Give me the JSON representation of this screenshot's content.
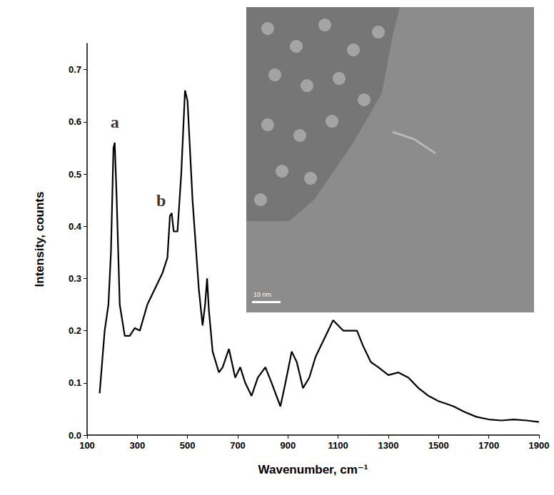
{
  "chart_data": {
    "type": "line",
    "x_label": "Wavenumber, cm⁻¹",
    "y_label": "Intensity, counts",
    "color": "#000000",
    "line_style": "solid",
    "grid": false,
    "x": [
      150,
      170,
      185,
      195,
      205,
      210,
      218,
      230,
      250,
      270,
      290,
      310,
      340,
      370,
      400,
      420,
      430,
      437,
      445,
      460,
      475,
      490,
      500,
      520,
      545,
      560,
      570,
      578,
      585,
      600,
      625,
      640,
      665,
      690,
      710,
      730,
      755,
      780,
      810,
      835,
      870,
      890,
      915,
      935,
      960,
      985,
      1010,
      1050,
      1080,
      1100,
      1120,
      1150,
      1175,
      1200,
      1230,
      1260,
      1300,
      1340,
      1380,
      1420,
      1460,
      1500,
      1530,
      1560,
      1600,
      1650,
      1700,
      1750,
      1800,
      1850,
      1900
    ],
    "values": [
      0.08,
      0.2,
      0.25,
      0.35,
      0.55,
      0.56,
      0.45,
      0.25,
      0.19,
      0.19,
      0.205,
      0.2,
      0.25,
      0.28,
      0.31,
      0.34,
      0.42,
      0.425,
      0.39,
      0.39,
      0.5,
      0.66,
      0.64,
      0.45,
      0.28,
      0.21,
      0.25,
      0.3,
      0.24,
      0.16,
      0.12,
      0.13,
      0.165,
      0.11,
      0.13,
      0.1,
      0.075,
      0.11,
      0.13,
      0.1,
      0.055,
      0.1,
      0.16,
      0.14,
      0.09,
      0.11,
      0.15,
      0.19,
      0.22,
      0.21,
      0.2,
      0.2,
      0.2,
      0.17,
      0.14,
      0.13,
      0.115,
      0.12,
      0.11,
      0.09,
      0.075,
      0.065,
      0.06,
      0.055,
      0.045,
      0.035,
      0.03,
      0.028,
      0.03,
      0.028,
      0.025
    ],
    "xlim": [
      100,
      1900
    ],
    "xticks": [
      100,
      300,
      500,
      700,
      900,
      1100,
      1300,
      1500,
      1700,
      1900
    ],
    "ylim": [
      0,
      0.75
    ],
    "yticks": [
      {
        "value": 0,
        "label": "0.0"
      },
      {
        "value": 0.1,
        "label": "0.1"
      },
      {
        "value": 0.2,
        "label": "0.2"
      },
      {
        "value": 0.3,
        "label": "0.3"
      },
      {
        "value": 0.4,
        "label": "0.4"
      },
      {
        "value": 0.5,
        "label": "0.5"
      },
      {
        "value": 0.6,
        "label": "0.6"
      },
      {
        "value": 0.7,
        "label": "0.7"
      }
    ],
    "annotations": [
      {
        "text": "a",
        "x": 210,
        "y": 0.6
      },
      {
        "text": "b",
        "x": 395,
        "y": 0.45
      }
    ],
    "inset": {
      "scale_bar_label": "10 nm"
    }
  }
}
